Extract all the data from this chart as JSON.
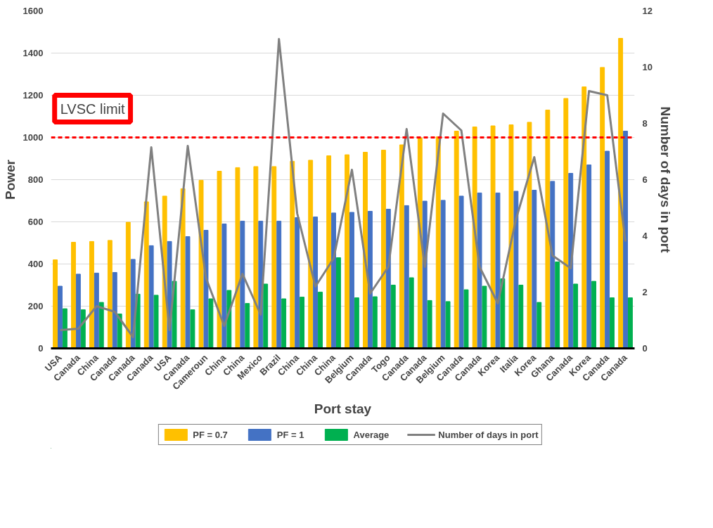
{
  "chart_data": {
    "type": "bar",
    "xlabel": "Port stay",
    "ylabel": "Power",
    "y2label": "Number of days in port",
    "categories": [
      "USA",
      "Canada",
      "China",
      "Canada",
      "Canada",
      "Canada",
      "USA",
      "Canada",
      "Cameroun",
      "China",
      "China",
      "Mexico",
      "Brazil",
      "China",
      "China",
      "China",
      "Belgium",
      "Canada",
      "Togo",
      "Canada",
      "Canada",
      "Belgium",
      "Canada",
      "Canada",
      "Korea",
      "Italia",
      "Korea",
      "Ghana",
      "Canada",
      "Korea",
      "Canada",
      "Canada"
    ],
    "series": [
      {
        "name": "PF = 0.7",
        "color": "#ffc000",
        "values": [
          420,
          503,
          507,
          512,
          598,
          695,
          722,
          757,
          797,
          840,
          857,
          862,
          862,
          887,
          892,
          913,
          918,
          930,
          940,
          965,
          998,
          1003,
          1030,
          1050,
          1055,
          1060,
          1072,
          1130,
          1185,
          1240,
          1332,
          1470
        ]
      },
      {
        "name": "PF = 1",
        "color": "#4472c4",
        "values": [
          295,
          352,
          357,
          360,
          422,
          487,
          507,
          530,
          560,
          590,
          603,
          603,
          603,
          620,
          623,
          642,
          645,
          650,
          660,
          677,
          698,
          702,
          722,
          737,
          737,
          745,
          750,
          792,
          830,
          870,
          935,
          1030
        ]
      },
      {
        "name": "Average",
        "color": "#00b050",
        "values": [
          188,
          183,
          218,
          163,
          257,
          252,
          318,
          183,
          235,
          275,
          213,
          305,
          235,
          243,
          267,
          430,
          240,
          245,
          300,
          335,
          227,
          222,
          278,
          295,
          330,
          300,
          218,
          410,
          305,
          318,
          240,
          240
        ]
      },
      {
        "name": "Number of days in port",
        "color": "#808080",
        "type": "line",
        "axis": "y2",
        "values": [
          0.65,
          0.7,
          1.5,
          1.3,
          0.4,
          7.15,
          0.65,
          7.2,
          2.5,
          0.8,
          2.65,
          1.2,
          11.0,
          4.8,
          2.2,
          3.2,
          6.35,
          1.95,
          2.9,
          7.8,
          2.9,
          8.35,
          7.75,
          2.9,
          1.6,
          4.6,
          6.8,
          3.3,
          2.85,
          9.15,
          9.0,
          3.8
        ]
      }
    ],
    "ylim": [
      0,
      1600
    ],
    "yticks": [
      0,
      200,
      400,
      600,
      800,
      1000,
      1200,
      1400,
      1600
    ],
    "y2lim": [
      0,
      12
    ],
    "y2ticks": [
      0,
      2,
      4,
      6,
      8,
      10,
      12
    ],
    "ref_lines": [
      {
        "axis": "y",
        "value": 1000,
        "label": "LVSC limit",
        "color": "#ff0000",
        "line_style": "dashed"
      }
    ],
    "grid": "y",
    "legend": "bottom"
  }
}
